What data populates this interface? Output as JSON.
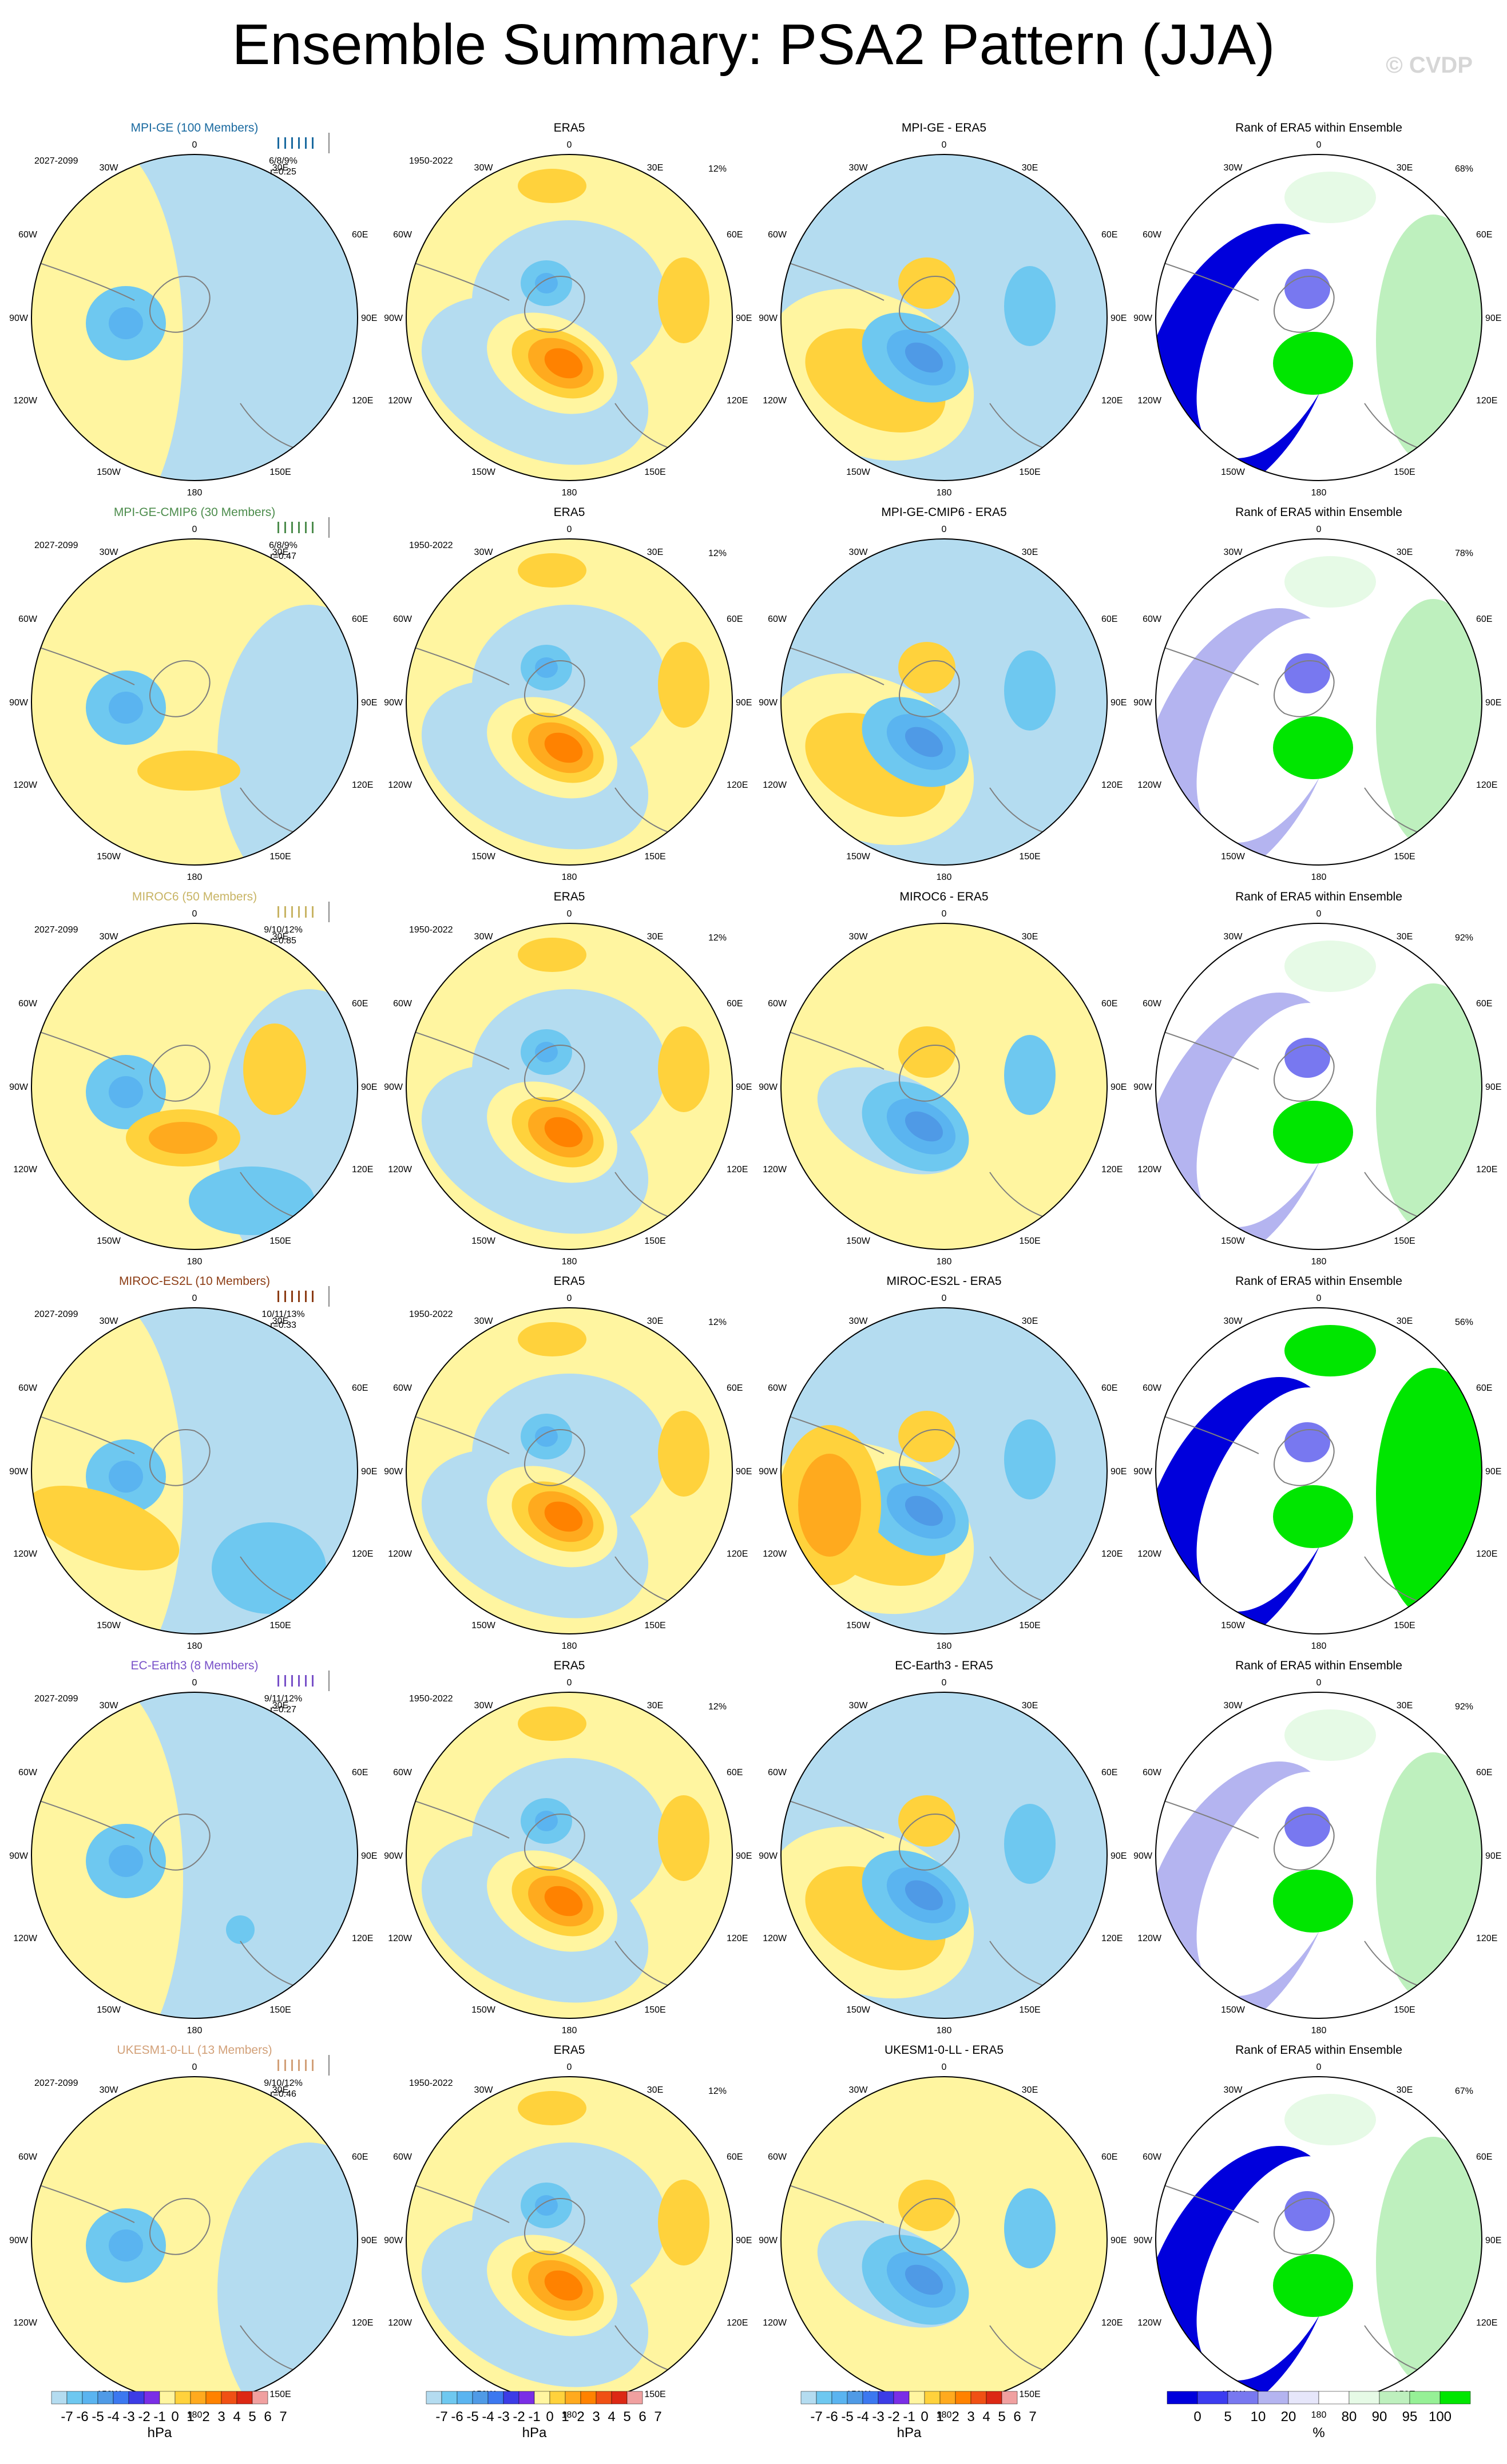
{
  "page": {
    "title": "Ensemble Summary: PSA2 Pattern (JJA)",
    "watermark": "© CVDP"
  },
  "colors": {
    "neg": [
      "#7a2ee6",
      "#3c3ce6",
      "#3c78f0",
      "#4f9ae6",
      "#5ab4f0",
      "#6ec8f0",
      "#b4dcf0"
    ],
    "pos": [
      "#fff5a0",
      "#ffd23c",
      "#ffaa1e",
      "#ff8200",
      "#f05014",
      "#dc2814",
      "#f0a0a0"
    ],
    "rank": [
      "#0000dc",
      "#3c3cf0",
      "#7878f0",
      "#b4b4f0",
      "#e6e6fa",
      "#ffffff",
      "#e6fae6",
      "#bef0be",
      "#96f096",
      "#00e600"
    ],
    "land": "#7f7f7f"
  },
  "map_labels": {
    "top": "0",
    "bottom": "180",
    "30W": "30W",
    "30E": "30E",
    "60W": "60W",
    "60E": "60E",
    "90W": "90W",
    "90E": "90E",
    "120W": "120W",
    "120E": "120E",
    "150W": "150W",
    "150E": "150E"
  },
  "rows": [
    {
      "model_title": "MPI-GE (100 Members)",
      "model_color": "#1a6aa0",
      "model_period": "2027-2099",
      "stats": "6/8/9%",
      "r": "r=0.25",
      "era_title": "ERA5",
      "era_period": "1950-2022",
      "era_pct": "12%",
      "diff_title": "MPI-GE - ERA5",
      "rank_title": "Rank of ERA5 within Ensemble",
      "rank_pct": "68%"
    },
    {
      "model_title": "MPI-GE-CMIP6 (30 Members)",
      "model_color": "#4c8c4c",
      "model_period": "2027-2099",
      "stats": "6/8/9%",
      "r": "r=0.47",
      "era_title": "ERA5",
      "era_period": "1950-2022",
      "era_pct": "12%",
      "diff_title": "MPI-GE-CMIP6 - ERA5",
      "rank_title": "Rank of ERA5 within Ensemble",
      "rank_pct": "78%"
    },
    {
      "model_title": "MIROC6 (50 Members)",
      "model_color": "#c8b464",
      "model_period": "2027-2099",
      "stats": "9/10/12%",
      "r": "r=0.85",
      "era_title": "ERA5",
      "era_period": "1950-2022",
      "era_pct": "12%",
      "diff_title": "MIROC6 - ERA5",
      "rank_title": "Rank of ERA5 within Ensemble",
      "rank_pct": "92%"
    },
    {
      "model_title": "MIROC-ES2L (10 Members)",
      "model_color": "#8c3c14",
      "model_period": "2027-2099",
      "stats": "10/11/13%",
      "r": "r=0.33",
      "era_title": "ERA5",
      "era_period": "1950-2022",
      "era_pct": "12%",
      "diff_title": "MIROC-ES2L - ERA5",
      "rank_title": "Rank of ERA5 within Ensemble",
      "rank_pct": "56%"
    },
    {
      "model_title": "EC-Earth3 (8 Members)",
      "model_color": "#7850c8",
      "model_period": "2027-2099",
      "stats": "9/11/12%",
      "r": "r=0.27",
      "era_title": "ERA5",
      "era_period": "1950-2022",
      "era_pct": "12%",
      "diff_title": "EC-Earth3 - ERA5",
      "rank_title": "Rank of ERA5 within Ensemble",
      "rank_pct": "92%"
    },
    {
      "model_title": "UKESM1-0-LL (13 Members)",
      "model_color": "#d2a078",
      "model_period": "2027-2099",
      "stats": "9/10/12%",
      "r": "r=0.46",
      "era_title": "ERA5",
      "era_period": "1950-2022",
      "era_pct": "12%",
      "diff_title": "UKESM1-0-LL - ERA5",
      "rank_title": "Rank of ERA5 within Ensemble",
      "rank_pct": "67%"
    }
  ],
  "colorbars": {
    "hpa_ticks": [
      "-7",
      "-6",
      "-5",
      "-4",
      "-3",
      "-2",
      "-1",
      "0",
      "1",
      "2",
      "3",
      "4",
      "5",
      "6",
      "7"
    ],
    "hpa_unit": "hPa",
    "rank_ticks": [
      "0",
      "5",
      "10",
      "20",
      "80",
      "90",
      "95",
      "100"
    ],
    "rank_unit": "%"
  }
}
